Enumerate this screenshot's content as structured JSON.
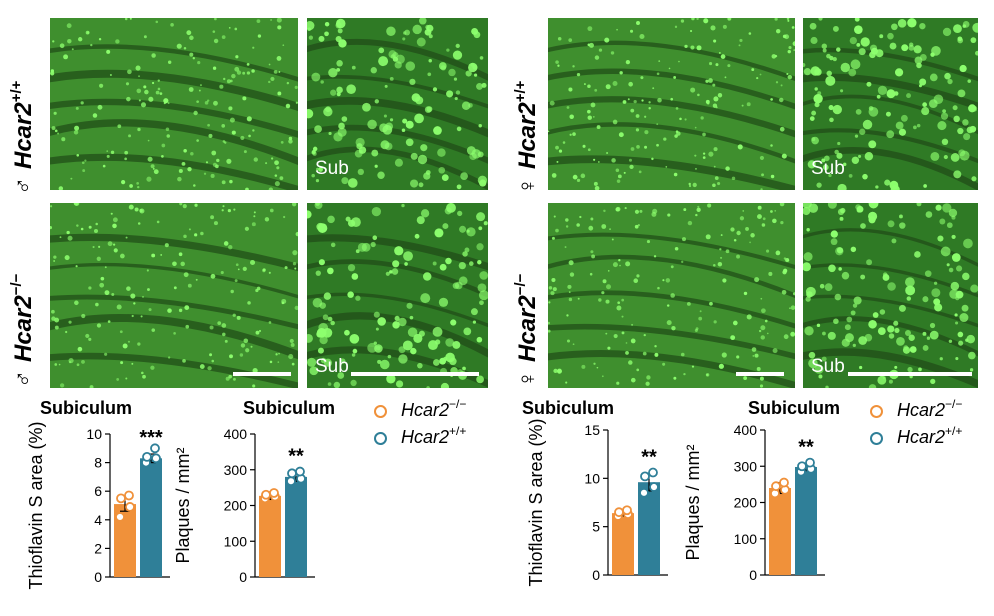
{
  "micrographs": {
    "sub_label": "Sub",
    "left_column": {
      "sex_symbol": "♂",
      "rows": [
        {
          "gene": "Hcar2",
          "genotype": "+/+"
        },
        {
          "gene": "Hcar2",
          "genotype": "−/−"
        }
      ]
    },
    "right_column": {
      "sex_symbol": "♀",
      "rows": [
        {
          "gene": "Hcar2",
          "genotype": "+/+"
        },
        {
          "gene": "Hcar2",
          "genotype": "−/−"
        }
      ]
    }
  },
  "legend": {
    "entries": [
      {
        "gene": "Hcar2",
        "genotype": "−/−",
        "color": "#f0913a"
      },
      {
        "gene": "Hcar2",
        "genotype": "+/+",
        "color": "#2f7f98"
      }
    ]
  },
  "colors": {
    "knockout": "#f0913a",
    "wildtype": "#2f7f98"
  },
  "chart_data": [
    {
      "type": "bar",
      "title": "Subiculum",
      "ylabel": "Thioflavin S area  (%)",
      "ylim": [
        0,
        10
      ],
      "yticks": [
        0,
        2,
        4,
        6,
        8,
        10
      ],
      "series": [
        {
          "values": [
            5.1
          ],
          "error": 0.5,
          "points": [
            4.2,
            4.9,
            5.5,
            5.7
          ],
          "color": "#f0913a"
        },
        {
          "values": [
            8.3
          ],
          "error": 0.3,
          "points": [
            8.0,
            8.3,
            8.4,
            9.0
          ],
          "color": "#2f7f98"
        }
      ],
      "significance": "***"
    },
    {
      "type": "bar",
      "title": "Subiculum",
      "ylabel": "Plaques / mm²",
      "ylim": [
        0,
        400
      ],
      "yticks": [
        0,
        100,
        200,
        300,
        400
      ],
      "series": [
        {
          "values": [
            227
          ],
          "error": 10,
          "points": [
            220,
            225,
            230,
            235
          ],
          "color": "#f0913a"
        },
        {
          "values": [
            280
          ],
          "error": 12,
          "points": [
            268,
            275,
            290,
            295
          ],
          "color": "#2f7f98"
        }
      ],
      "significance": "**"
    },
    {
      "type": "bar",
      "title": "Subiculum",
      "ylabel": "Thioflavin S area  (%)",
      "ylim": [
        0,
        15
      ],
      "yticks": [
        0,
        5,
        10,
        15
      ],
      "series": [
        {
          "values": [
            6.4
          ],
          "error": 0.3,
          "points": [
            6.1,
            6.3,
            6.5,
            6.7
          ],
          "color": "#f0913a"
        },
        {
          "values": [
            9.6
          ],
          "error": 0.9,
          "points": [
            8.5,
            9.1,
            10.2,
            10.6
          ],
          "color": "#2f7f98"
        }
      ],
      "significance": "**"
    },
    {
      "type": "bar",
      "title": "Subiculum",
      "ylabel": "Plaques / mm²",
      "ylim": [
        0,
        400
      ],
      "yticks": [
        0,
        100,
        200,
        300,
        400
      ],
      "series": [
        {
          "values": [
            240
          ],
          "error": 15,
          "points": [
            225,
            235,
            245,
            255
          ],
          "color": "#f0913a"
        },
        {
          "values": [
            298
          ],
          "error": 10,
          "points": [
            285,
            293,
            300,
            310
          ],
          "color": "#2f7f98"
        }
      ],
      "significance": "**"
    }
  ]
}
